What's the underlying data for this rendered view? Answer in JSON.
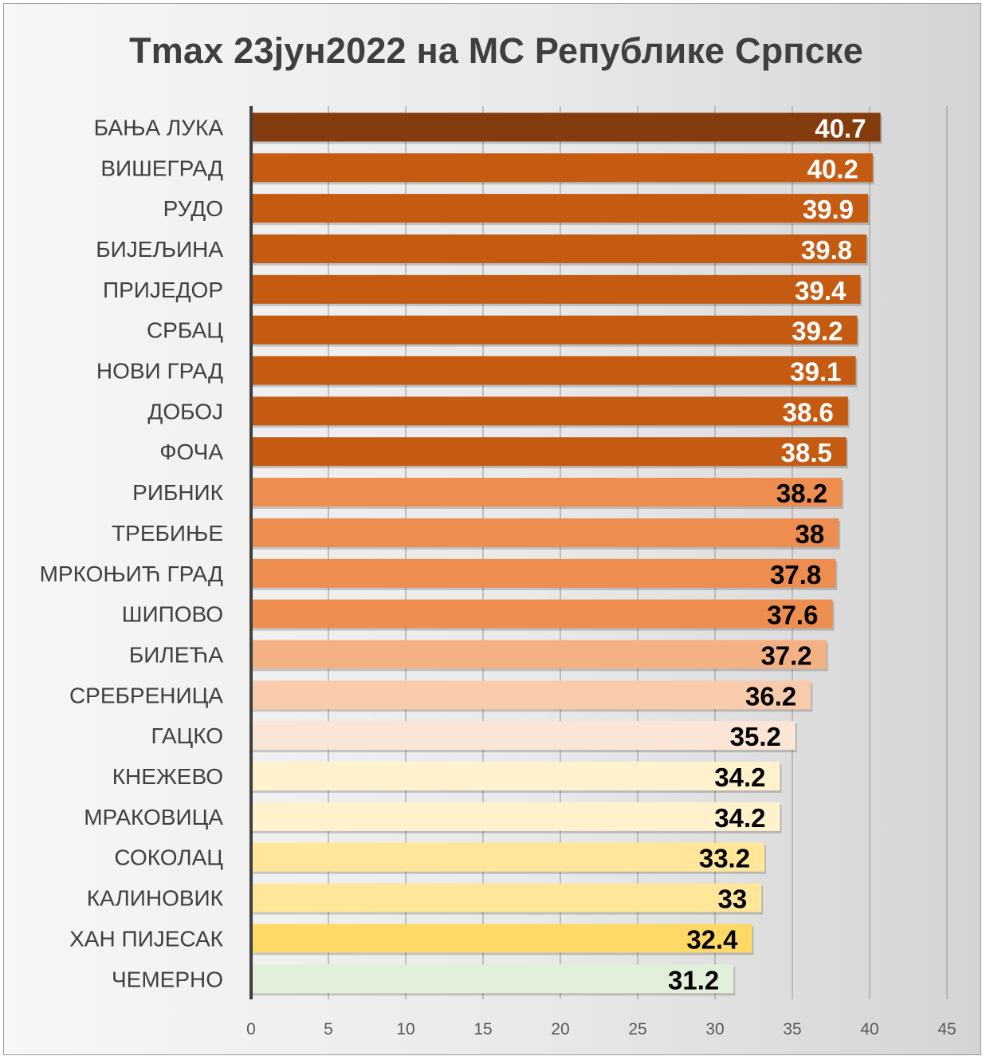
{
  "chart_data": {
    "type": "bar",
    "orientation": "horizontal",
    "title": "Tmax 23јун2022 на МС Републике Српске",
    "xlabel": "",
    "ylabel": "",
    "xlim": [
      0,
      45
    ],
    "x_ticks": [
      0,
      5,
      10,
      15,
      20,
      25,
      30,
      35,
      40,
      45
    ],
    "grid": "vertical",
    "legend": "none",
    "categories": [
      "БАЊА ЛУКА",
      "ВИШЕГРАД",
      "РУДО",
      "БИЈЕЉИНА",
      "ПРИЈЕДОР",
      "СРБАЦ",
      "НОВИ ГРАД",
      "ДОБОЈ",
      "ФОЧА",
      "РИБНИК",
      "ТРЕБИЊЕ",
      "МРКОЊИЋ ГРАД",
      "ШИПОВО",
      "БИЛЕЋА",
      "СРЕБРЕНИЦА",
      "ГАЦКО",
      "КНЕЖЕВО",
      "МРАКОВИЦА",
      "СОКОЛАЦ",
      "КАЛИНОВИК",
      "ХАН ПИЈЕСАК",
      "ЧЕМЕРНО"
    ],
    "values": [
      40.7,
      40.2,
      39.9,
      39.8,
      39.4,
      39.2,
      39.1,
      38.6,
      38.5,
      38.2,
      38,
      37.8,
      37.6,
      37.2,
      36.2,
      35.2,
      34.2,
      34.2,
      33.2,
      33,
      32.4,
      31.2
    ],
    "data_labels": [
      "40.7",
      "40.2",
      "39.9",
      "39.8",
      "39.4",
      "39.2",
      "39.1",
      "38.6",
      "38.5",
      "38.2",
      "38",
      "37.8",
      "37.6",
      "37.2",
      "36.2",
      "35.2",
      "34.2",
      "34.2",
      "33.2",
      "33",
      "32.4",
      "31.2"
    ],
    "bar_colors": [
      "#843C0C",
      "#C55A11",
      "#C55A11",
      "#C55A11",
      "#C55A11",
      "#C55A11",
      "#C55A11",
      "#C55A11",
      "#C55A11",
      "#ED8D4F",
      "#ED8D4F",
      "#ED8D4F",
      "#ED8D4F",
      "#F4B183",
      "#F8CBAD",
      "#FBE5D6",
      "#FFF2CC",
      "#FFF2CC",
      "#FFE699",
      "#FFE699",
      "#FFD966",
      "#E2EFDA"
    ],
    "label_colors": [
      "#ffffff",
      "#ffffff",
      "#ffffff",
      "#ffffff",
      "#ffffff",
      "#ffffff",
      "#ffffff",
      "#ffffff",
      "#ffffff",
      "#000000",
      "#000000",
      "#000000",
      "#000000",
      "#000000",
      "#000000",
      "#000000",
      "#000000",
      "#000000",
      "#000000",
      "#000000",
      "#000000",
      "#000000"
    ]
  }
}
